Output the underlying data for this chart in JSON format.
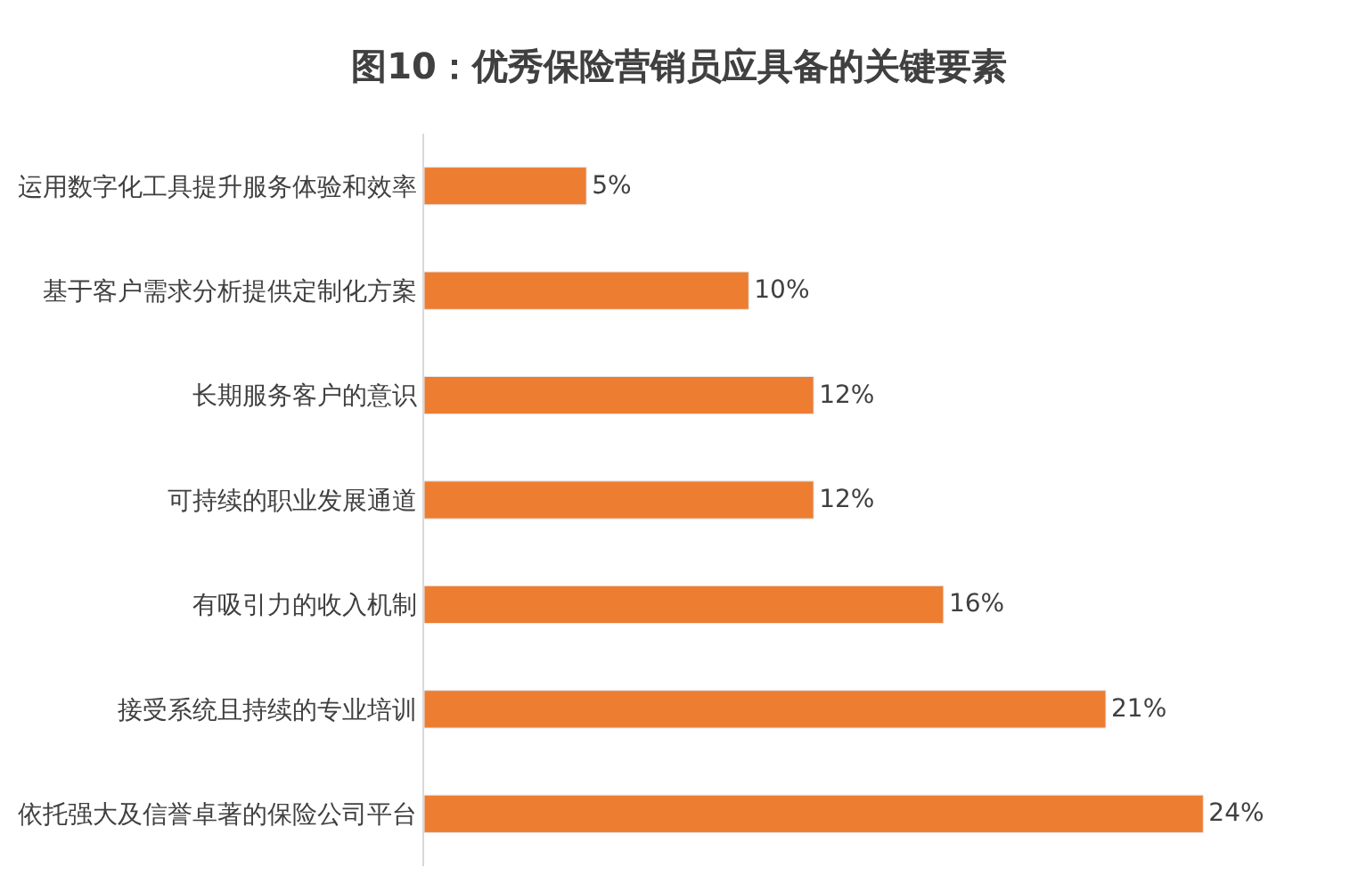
{
  "chart_data": {
    "type": "bar",
    "orientation": "horizontal",
    "title": "图10：优秀保险营销员应具备的关键要素",
    "categories": [
      "运用数字化工具提升服务体验和效率",
      "基于客户需求分析提供定制化方案",
      "长期服务客户的意识",
      "可持续的职业发展通道",
      "有吸引力的收入机制",
      "接受系统且持续的专业培训",
      "依托强大及信誉卓著的保险公司平台"
    ],
    "values": [
      5,
      10,
      12,
      12,
      16,
      21,
      24
    ],
    "value_labels": [
      "5%",
      "10%",
      "12%",
      "12%",
      "16%",
      "21%",
      "24%"
    ],
    "color": "#ed7d31",
    "legend": false,
    "tick_labels": "y"
  }
}
